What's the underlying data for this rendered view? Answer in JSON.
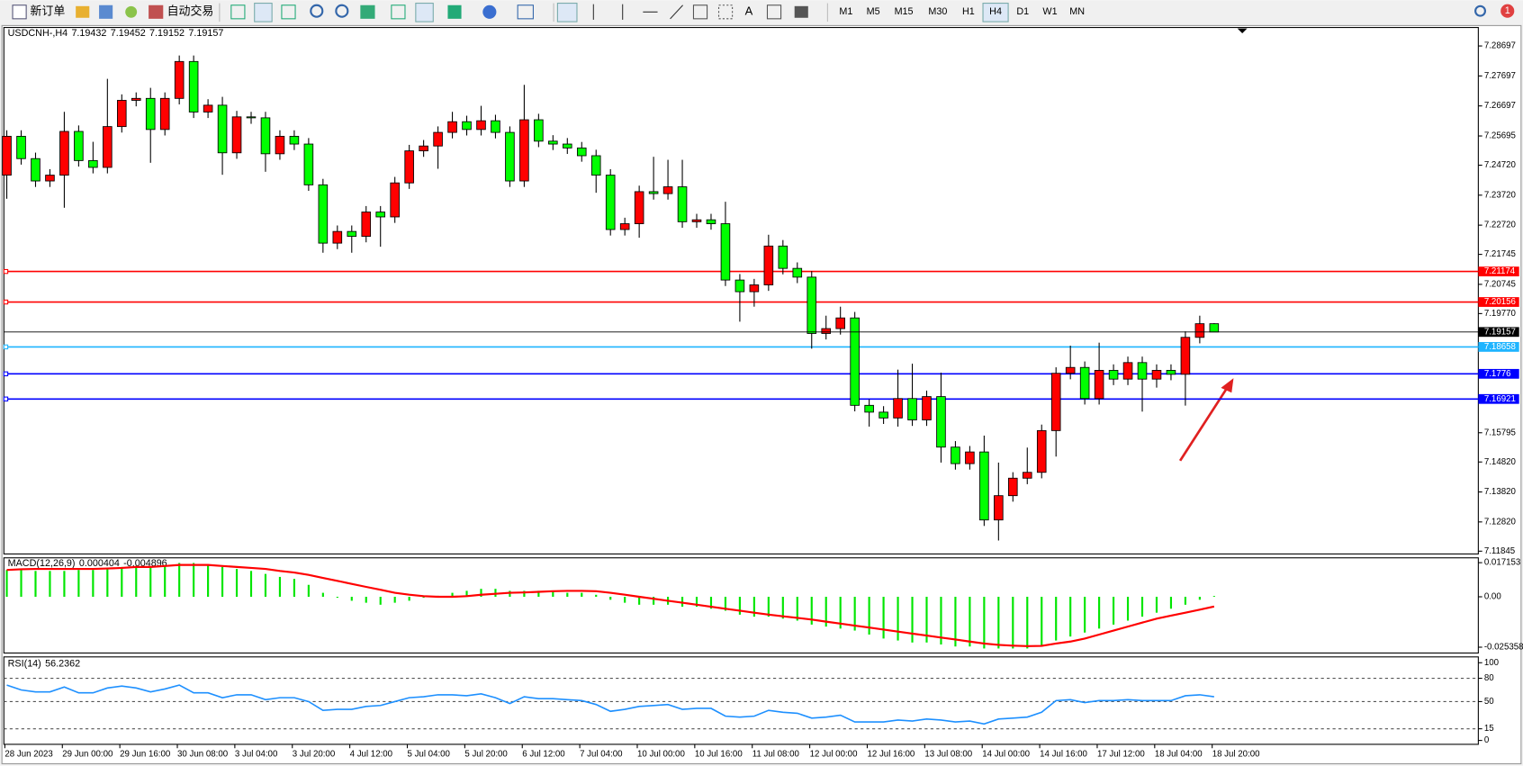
{
  "toolbar": {
    "new_order": "新订单",
    "auto_trading": "自动交易",
    "text_tool": "A",
    "timeframes": [
      "M1",
      "M5",
      "M15",
      "M30",
      "H1",
      "H4",
      "D1",
      "W1",
      "MN"
    ],
    "active_timeframe": "H4",
    "notification_count": "1"
  },
  "chart_data": [
    {
      "type": "candlestick",
      "title": "USDCNH-,H4",
      "up_color": "#ff0000",
      "down_color": "#00ff00",
      "categories": [
        "28 Jun 2023",
        null,
        null,
        null,
        "29 Jun 00:00",
        null,
        null,
        null,
        "29 Jun 16:00",
        null,
        null,
        null,
        "30 Jun 08:00",
        null,
        null,
        null,
        "3 Jul 04:00",
        null,
        null,
        null,
        "3 Jul 20:00",
        null,
        null,
        null,
        "4 Jul 12:00",
        null,
        null,
        null,
        "5 Jul 04:00",
        null,
        null,
        null,
        "5 Jul 20:00",
        null,
        null,
        null,
        "6 Jul 12:00",
        null,
        null,
        null,
        "7 Jul 04:00",
        null,
        null,
        null,
        "10 Jul 00:00",
        null,
        null,
        null,
        "10 Jul 16:00",
        null,
        null,
        null,
        "11 Jul 08:00",
        null,
        null,
        null,
        "12 Jul 00:00",
        null,
        null,
        null,
        "12 Jul 16:00",
        null,
        null,
        null,
        "13 Jul 08:00",
        null,
        null,
        null,
        "14 Jul 00:00",
        null,
        null,
        null,
        "14 Jul 16:00",
        null,
        null,
        null,
        "17 Jul 12:00",
        null,
        null,
        null,
        "18 Jul 04:00",
        null,
        null,
        null,
        "18 Jul 20:00"
      ],
      "open": [
        7.24388,
        7.25684,
        7.24939,
        7.24194,
        7.24388,
        7.25846,
        7.24874,
        7.24647,
        7.26008,
        7.26883,
        7.26948,
        7.25911,
        7.26948,
        7.28179,
        7.26494,
        7.26721,
        7.25133,
        7.26332,
        7.263,
        7.25101,
        7.25684,
        7.25425,
        7.24064,
        7.2212,
        7.22509,
        7.22347,
        7.23157,
        7.22995,
        7.24129,
        7.25198,
        7.2536,
        7.25814,
        7.2617,
        7.25911,
        7.26202,
        7.25814,
        7.24194,
        7.26235,
        7.25522,
        7.25425,
        7.25295,
        7.25036,
        7.24388,
        7.22574,
        7.22768,
        7.23837,
        7.23772,
        7.23999,
        7.22833,
        7.22898,
        7.22768,
        7.20889,
        7.205,
        7.20727,
        7.22023,
        7.21278,
        7.20986,
        7.19107,
        7.19269,
        7.19625,
        7.16709,
        7.16482,
        7.16288,
        7.16936,
        7.16223,
        7.17001,
        7.15316,
        7.14765,
        7.15154,
        7.12886,
        7.13696,
        7.14279,
        7.14474,
        7.15867,
        7.17778,
        7.17973,
        7.16936,
        7.17876,
        7.17584,
        7.18135,
        7.17584,
        7.17876,
        7.17746,
        7.18977,
        7.19432
      ],
      "high": [
        7.25884,
        7.25884,
        7.25139,
        7.24588,
        7.265,
        7.26046,
        7.255,
        7.276,
        7.27083,
        7.27148,
        7.273,
        7.27148,
        7.28379,
        7.28379,
        7.26921,
        7.27,
        7.26532,
        7.265,
        7.265,
        7.25884,
        7.25884,
        7.25625,
        7.24264,
        7.22709,
        7.22709,
        7.23357,
        7.23357,
        7.24329,
        7.25398,
        7.2556,
        7.26014,
        7.265,
        7.2637,
        7.267,
        7.26402,
        7.26014,
        7.274,
        7.26435,
        7.25722,
        7.25625,
        7.25495,
        7.25236,
        7.24588,
        7.22968,
        7.24037,
        7.25,
        7.249,
        7.249,
        7.23098,
        7.23098,
        7.235,
        7.21089,
        7.20927,
        7.224,
        7.22223,
        7.21478,
        7.21186,
        7.197,
        7.2,
        7.19825,
        7.16909,
        7.16682,
        7.179,
        7.181,
        7.17201,
        7.178,
        7.15516,
        7.15354,
        7.157,
        7.148,
        7.14479,
        7.153,
        7.16067,
        7.17978,
        7.187,
        7.18173,
        7.188,
        7.18076,
        7.18335,
        7.18335,
        7.18076,
        7.18076,
        7.19177,
        7.197,
        7.19452
      ],
      "low": [
        7.236,
        7.24739,
        7.23994,
        7.23994,
        7.233,
        7.24674,
        7.24447,
        7.24447,
        7.25808,
        7.26683,
        7.248,
        7.25711,
        7.26748,
        7.26294,
        7.26294,
        7.244,
        7.24933,
        7.261,
        7.245,
        7.24901,
        7.25225,
        7.23864,
        7.218,
        7.2192,
        7.218,
        7.22147,
        7.22,
        7.22795,
        7.23929,
        7.24998,
        7.246,
        7.25614,
        7.25711,
        7.25711,
        7.25614,
        7.23994,
        7.23994,
        7.25322,
        7.25225,
        7.25095,
        7.24836,
        7.238,
        7.22374,
        7.22374,
        7.223,
        7.23572,
        7.23572,
        7.22633,
        7.22633,
        7.22568,
        7.20689,
        7.195,
        7.2,
        7.20527,
        7.21078,
        7.20786,
        7.186,
        7.18907,
        7.19069,
        7.16509,
        7.16,
        7.16088,
        7.16,
        7.16023,
        7.16023,
        7.148,
        7.14565,
        7.14565,
        7.12686,
        7.122,
        7.13496,
        7.14079,
        7.14274,
        7.15,
        7.17578,
        7.16736,
        7.16736,
        7.17384,
        7.17384,
        7.165,
        7.173,
        7.17546,
        7.167,
        7.18777,
        7.19152
      ],
      "close": [
        7.25684,
        7.24939,
        7.24194,
        7.24388,
        7.25846,
        7.24874,
        7.24647,
        7.26008,
        7.26883,
        7.26948,
        7.25911,
        7.26948,
        7.28179,
        7.26494,
        7.26721,
        7.25133,
        7.26332,
        7.263,
        7.25101,
        7.25684,
        7.25425,
        7.24064,
        7.2212,
        7.22509,
        7.22347,
        7.23157,
        7.22995,
        7.24129,
        7.25198,
        7.2536,
        7.25814,
        7.2617,
        7.25911,
        7.26202,
        7.25814,
        7.24194,
        7.26235,
        7.25522,
        7.25425,
        7.25295,
        7.25036,
        7.24388,
        7.22574,
        7.22768,
        7.23837,
        7.23772,
        7.23999,
        7.22833,
        7.22898,
        7.22768,
        7.20889,
        7.205,
        7.20727,
        7.22023,
        7.21278,
        7.20986,
        7.19107,
        7.19269,
        7.19625,
        7.16709,
        7.16482,
        7.16288,
        7.16936,
        7.16223,
        7.17001,
        7.15316,
        7.14765,
        7.15154,
        7.12886,
        7.13696,
        7.14279,
        7.14474,
        7.15867,
        7.17778,
        7.17973,
        7.16936,
        7.17876,
        7.17584,
        7.18135,
        7.17584,
        7.17876,
        7.17746,
        7.18977,
        7.19432,
        7.19157
      ],
      "ylim": [
        7.11752,
        7.29248
      ],
      "yticks": [
        7.28697,
        7.27697,
        7.26697,
        7.25695,
        {
          "value": 7.2472,
          "label": "7.24720"
        },
        {
          "value": 7.2372,
          "label": "7.23720"
        },
        {
          "value": 7.2272,
          "label": "7.22720"
        },
        7.21745,
        7.20745,
        {
          "value": 7.1977,
          "label": "7.19770"
        },
        7.15795,
        {
          "value": 7.1482,
          "label": "7.14820"
        },
        {
          "value": 7.1382,
          "label": "7.13820"
        },
        {
          "value": 7.1282,
          "label": "7.12820"
        },
        7.11845
      ],
      "levels": [
        {
          "value": 7.21174,
          "color": "#ff0000"
        },
        {
          "value": 7.20156,
          "color": "#ff0000"
        },
        {
          "value": 7.18658,
          "color": "#1eb4ff"
        },
        {
          "value": 7.1776,
          "color": "#0000ff"
        },
        {
          "value": 7.16921,
          "color": "#0000ff"
        }
      ]
    },
    {
      "type": "macd",
      "title": "MACD(12,26,9)",
      "histogram": {
        "color": "#00e600",
        "values": [
          0.0135,
          0.0135,
          0.013,
          0.013,
          0.013,
          0.0135,
          0.0135,
          0.014,
          0.015,
          0.0155,
          0.015,
          0.016,
          0.017,
          0.017,
          0.016,
          0.015,
          0.014,
          0.013,
          0.0115,
          0.01,
          0.009,
          0.006,
          0.002,
          -0.0005,
          -0.002,
          -0.003,
          -0.004,
          -0.003,
          -0.002,
          -0.0005,
          0.0005,
          0.002,
          0.003,
          0.004,
          0.004,
          0.003,
          0.003,
          0.003,
          0.003,
          0.002,
          0.002,
          0.001,
          -0.0015,
          -0.003,
          -0.004,
          -0.004,
          -0.004,
          -0.005,
          -0.005,
          -0.006,
          -0.007,
          -0.009,
          -0.01,
          -0.01,
          -0.011,
          -0.012,
          -0.014,
          -0.015,
          -0.016,
          -0.017,
          -0.019,
          -0.021,
          -0.022,
          -0.023,
          -0.023,
          -0.024,
          -0.025,
          -0.025,
          -0.026,
          -0.026,
          -0.026,
          -0.026,
          -0.025,
          -0.022,
          -0.02,
          -0.018,
          -0.016,
          -0.014,
          -0.012,
          -0.01,
          -0.008,
          -0.006,
          -0.004,
          -0.0015,
          0.000404
        ]
      },
      "signal": {
        "color": "#ff0000",
        "values": [
          0.0135,
          0.0138,
          0.014,
          0.014,
          0.014,
          0.014,
          0.014,
          0.0142,
          0.0145,
          0.015,
          0.015,
          0.0155,
          0.016,
          0.016,
          0.016,
          0.0155,
          0.015,
          0.0145,
          0.014,
          0.013,
          0.0122,
          0.011,
          0.0095,
          0.008,
          0.0065,
          0.005,
          0.0035,
          0.002,
          0.001,
          0.0003,
          0,
          0,
          0.0003,
          0.001,
          0.0015,
          0.002,
          0.0022,
          0.0025,
          0.0028,
          0.003,
          0.003,
          0.0028,
          0.002,
          0.001,
          0,
          -0.001,
          -0.002,
          -0.003,
          -0.004,
          -0.005,
          -0.006,
          -0.007,
          -0.008,
          -0.009,
          -0.0098,
          -0.0106,
          -0.0115,
          -0.0125,
          -0.0135,
          -0.0145,
          -0.0155,
          -0.0165,
          -0.0175,
          -0.0185,
          -0.0195,
          -0.0205,
          -0.0215,
          -0.0225,
          -0.0235,
          -0.0242,
          -0.0246,
          -0.0248,
          -0.0247,
          -0.0235,
          -0.0225,
          -0.021,
          -0.019,
          -0.017,
          -0.015,
          -0.013,
          -0.011,
          -0.0095,
          -0.008,
          -0.0065,
          -0.004896
        ]
      },
      "ylim": [
        -0.0278,
        0.0191
      ],
      "yticks": [
        0.017153,
        {
          "value": 0,
          "label": "0.00"
        },
        -0.025358
      ]
    },
    {
      "type": "line",
      "title": "RSI(14)",
      "color": "#1e90ff",
      "values": [
        71.3,
        65,
        62.5,
        62.5,
        68.8,
        61.3,
        61.3,
        67.5,
        70,
        67.5,
        62.5,
        66.3,
        71.3,
        61.3,
        61.3,
        55,
        58.8,
        58.8,
        52.5,
        55,
        55,
        50,
        38.8,
        40,
        40,
        43.8,
        45,
        50,
        55,
        56.3,
        58.8,
        58.8,
        57.5,
        60,
        55,
        47.5,
        56.3,
        53.8,
        53.8,
        52.5,
        51.3,
        46.3,
        37.5,
        40,
        43.8,
        45,
        46.3,
        40,
        41.3,
        41.3,
        31.3,
        30,
        31.3,
        38.8,
        36.3,
        35,
        28.8,
        30,
        32.5,
        23.8,
        23.8,
        23.8,
        26.3,
        25,
        27.5,
        26.3,
        23.8,
        25,
        21.3,
        27.5,
        28.8,
        30,
        36.3,
        51.3,
        52.5,
        48.8,
        51.3,
        51.3,
        52.5,
        51.3,
        51.3,
        51.3,
        57.5,
        58.8,
        56.2362
      ],
      "ylim": [
        0,
        100
      ],
      "yticks": [
        100,
        80,
        50,
        15,
        0
      ]
    }
  ]
}
